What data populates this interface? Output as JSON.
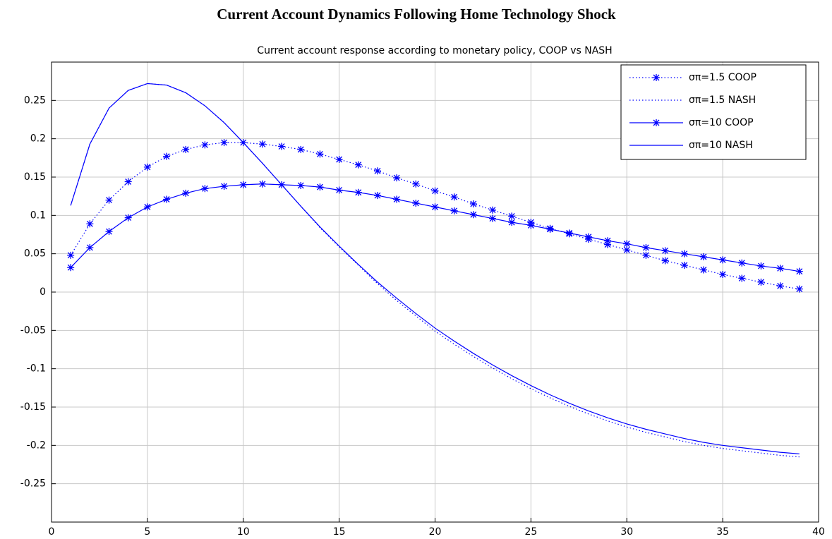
{
  "chart_data": {
    "type": "line",
    "title": "Current Account Dynamics Following Home Technology Shock",
    "subtitle": "Current account response according to monetary policy, COOP vs NASH",
    "x": [
      1,
      2,
      3,
      4,
      5,
      6,
      7,
      8,
      9,
      10,
      11,
      12,
      13,
      14,
      15,
      16,
      17,
      18,
      19,
      20,
      21,
      22,
      23,
      24,
      25,
      26,
      27,
      28,
      29,
      30,
      31,
      32,
      33,
      34,
      35,
      36,
      37,
      38,
      39
    ],
    "series": [
      {
        "name": "σπ=1.5 COOP",
        "color": "#0000ff",
        "line": "dotted",
        "marker": "star",
        "values": [
          0.048,
          0.089,
          0.12,
          0.144,
          0.163,
          0.177,
          0.186,
          0.192,
          0.195,
          0.195,
          0.193,
          0.19,
          0.186,
          0.18,
          0.173,
          0.166,
          0.158,
          0.149,
          0.141,
          0.132,
          0.124,
          0.115,
          0.107,
          0.099,
          0.091,
          0.083,
          0.076,
          0.069,
          0.062,
          0.055,
          0.048,
          0.041,
          0.035,
          0.029,
          0.023,
          0.018,
          0.013,
          0.008,
          0.004
        ]
      },
      {
        "name": "σπ=1.5 NASH",
        "color": "#0000ff",
        "line": "dotted",
        "marker": "none",
        "values": [
          0.113,
          0.193,
          0.24,
          0.263,
          0.272,
          0.27,
          0.26,
          0.243,
          0.221,
          0.195,
          0.168,
          0.14,
          0.112,
          0.084,
          0.059,
          0.035,
          0.011,
          -0.011,
          -0.031,
          -0.051,
          -0.068,
          -0.084,
          -0.099,
          -0.113,
          -0.126,
          -0.138,
          -0.149,
          -0.159,
          -0.168,
          -0.176,
          -0.183,
          -0.189,
          -0.195,
          -0.2,
          -0.204,
          -0.207,
          -0.21,
          -0.213,
          -0.215
        ]
      },
      {
        "name": "σπ=10 COOP",
        "color": "#0000ff",
        "line": "solid",
        "marker": "star",
        "values": [
          0.032,
          0.058,
          0.079,
          0.097,
          0.111,
          0.121,
          0.129,
          0.135,
          0.138,
          0.14,
          0.141,
          0.14,
          0.139,
          0.137,
          0.133,
          0.13,
          0.126,
          0.121,
          0.116,
          0.111,
          0.106,
          0.101,
          0.096,
          0.091,
          0.087,
          0.082,
          0.077,
          0.072,
          0.067,
          0.063,
          0.058,
          0.054,
          0.05,
          0.046,
          0.042,
          0.038,
          0.034,
          0.031,
          0.027
        ]
      },
      {
        "name": "σπ=10 NASH",
        "color": "#0000ff",
        "line": "solid",
        "marker": "none",
        "values": [
          0.113,
          0.193,
          0.24,
          0.263,
          0.272,
          0.27,
          0.26,
          0.243,
          0.221,
          0.195,
          0.168,
          0.14,
          0.112,
          0.085,
          0.06,
          0.036,
          0.013,
          -0.008,
          -0.028,
          -0.047,
          -0.064,
          -0.08,
          -0.095,
          -0.109,
          -0.122,
          -0.134,
          -0.145,
          -0.155,
          -0.164,
          -0.172,
          -0.179,
          -0.185,
          -0.191,
          -0.196,
          -0.2,
          -0.203,
          -0.206,
          -0.209,
          -0.211
        ]
      }
    ],
    "xlim": [
      0,
      40
    ],
    "xticks": [
      0,
      5,
      10,
      15,
      20,
      25,
      30,
      35,
      40
    ],
    "ylim": [
      -0.3,
      0.3
    ],
    "yticks": [
      -0.25,
      -0.2,
      -0.15,
      -0.1,
      -0.05,
      0,
      0.05,
      0.1,
      0.15,
      0.2,
      0.25
    ],
    "grid": true,
    "legend": "upper right"
  }
}
